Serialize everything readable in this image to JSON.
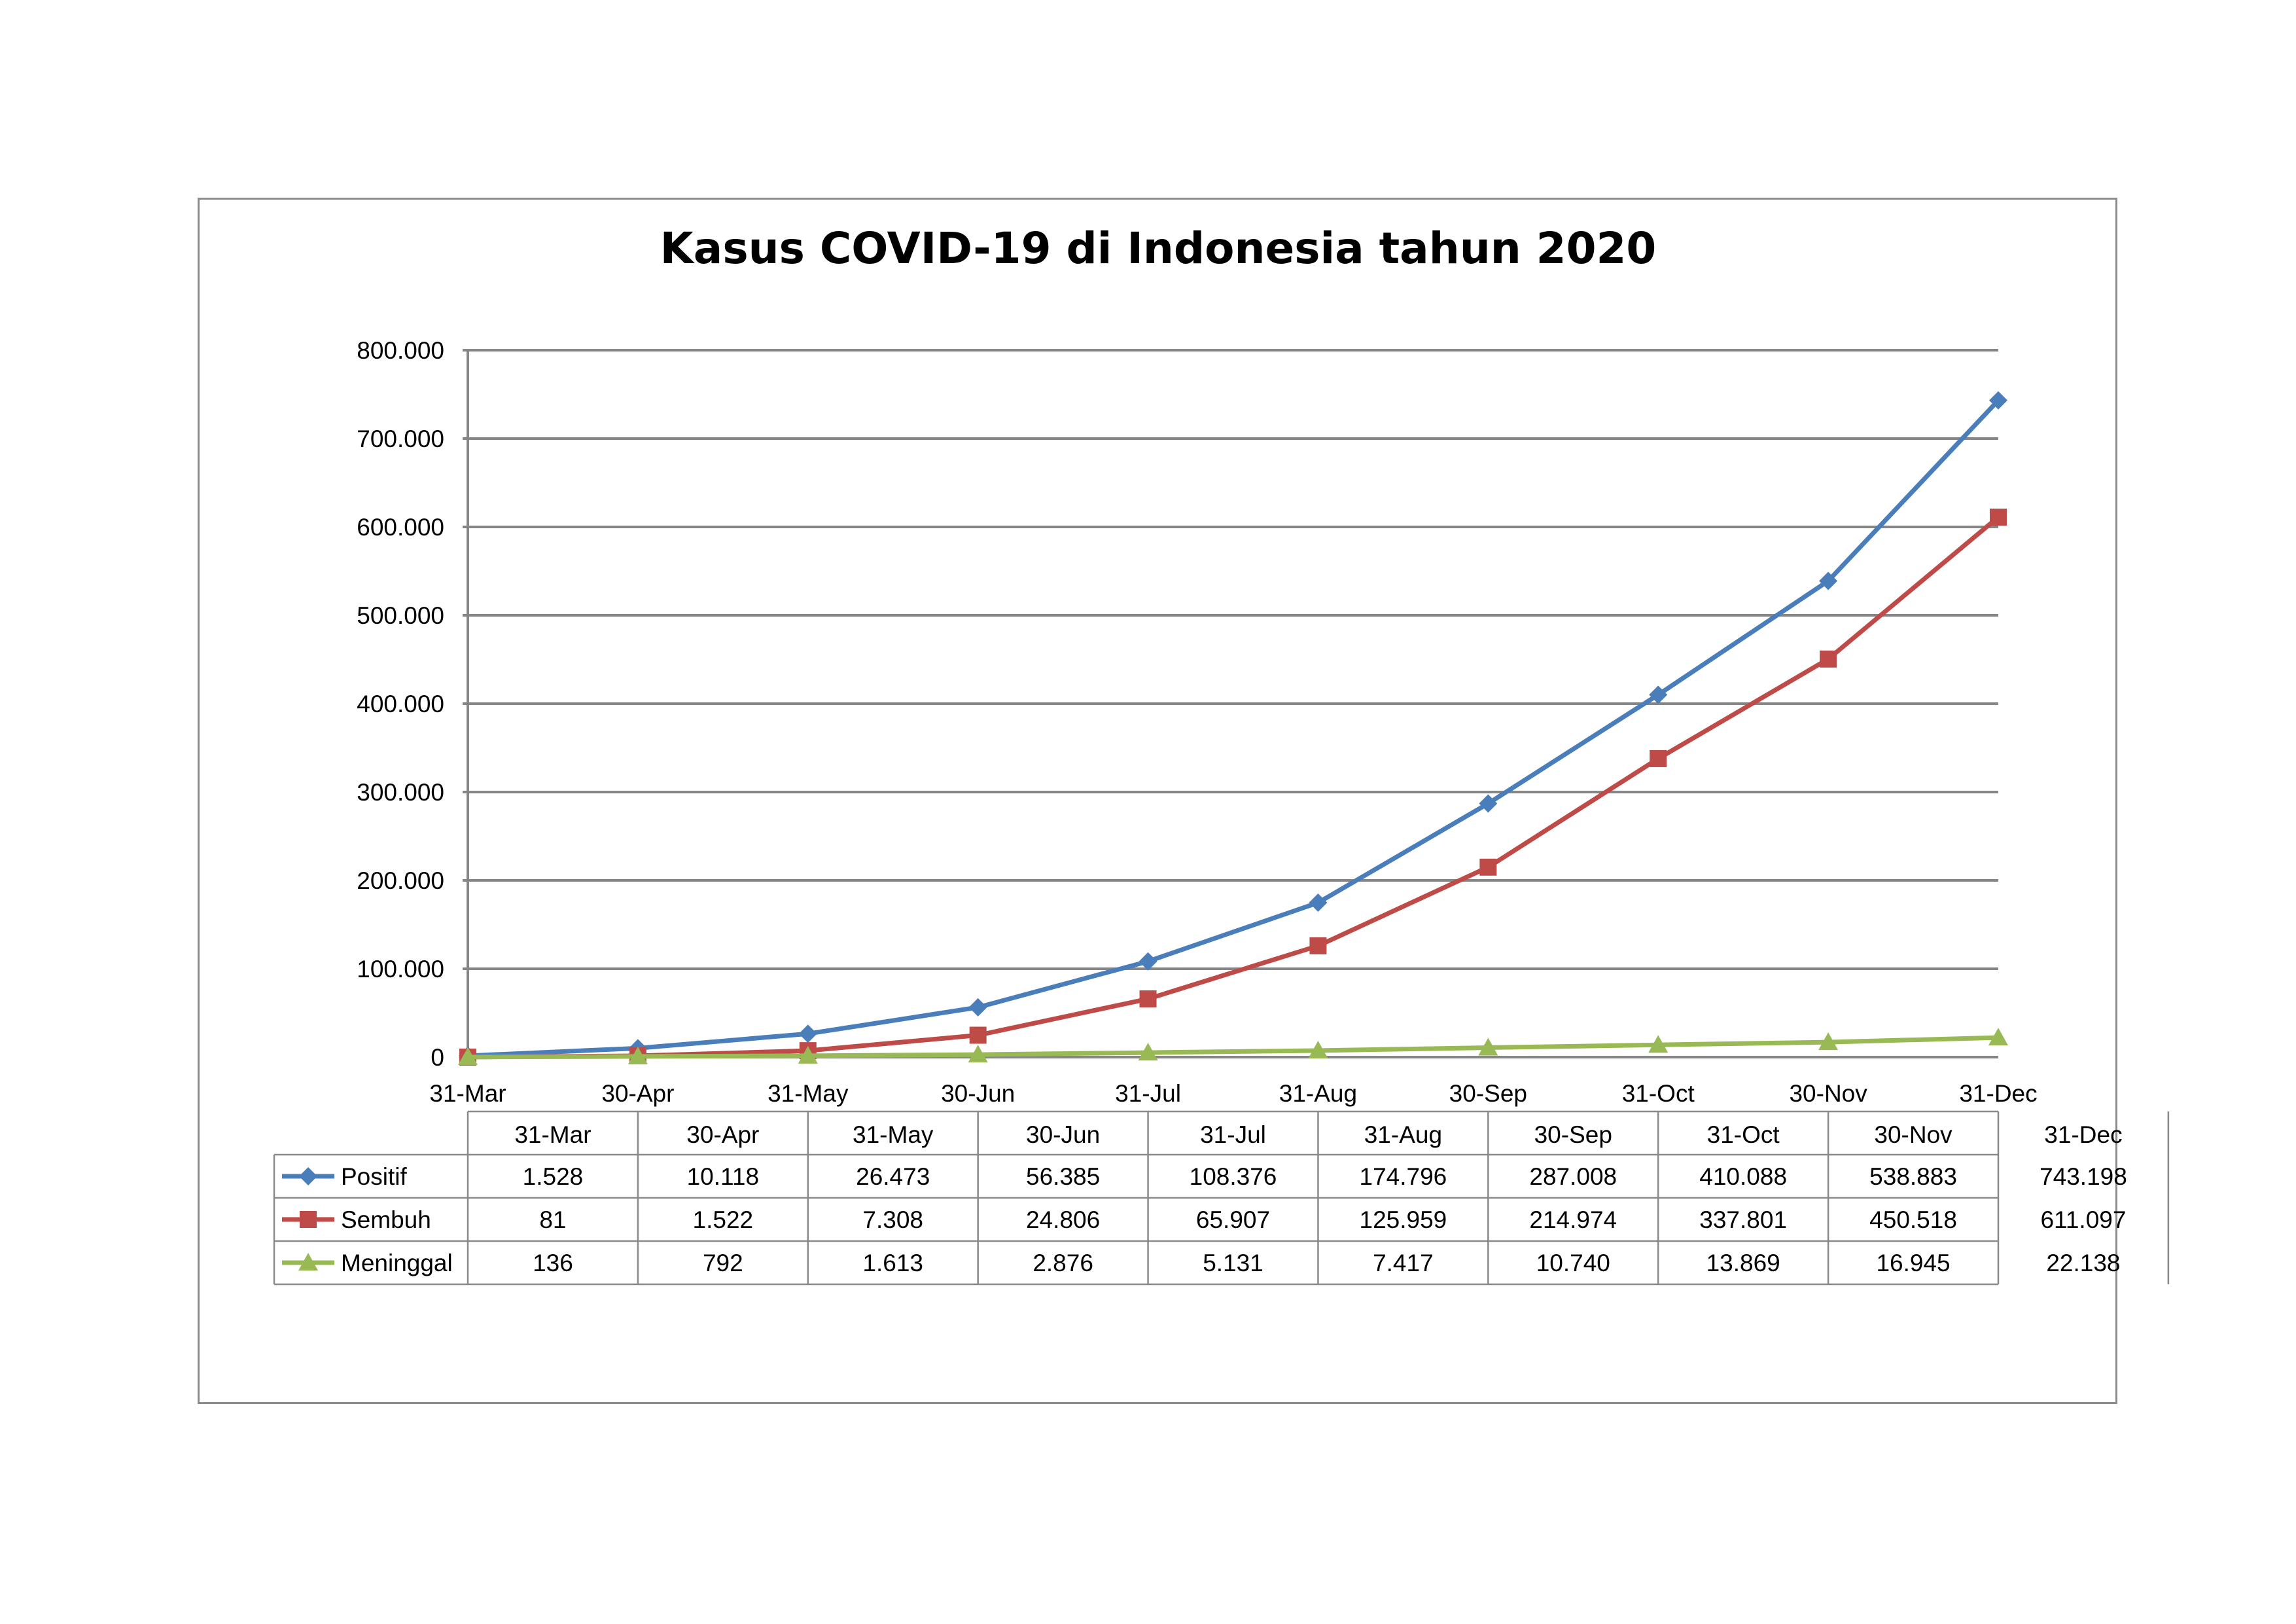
{
  "colors": {
    "positif": "#4a7ebb",
    "sembuh": "#be4b48",
    "meninggal": "#98b954",
    "grid": "#868686"
  },
  "chart_data": {
    "type": "line",
    "title": "Kasus COVID-19 di Indonesia tahun 2020",
    "xlabel": "",
    "ylabel": "",
    "ylim": [
      0,
      800000
    ],
    "ytick_labels": [
      "0",
      "100.000",
      "200.000",
      "300.000",
      "400.000",
      "500.000",
      "600.000",
      "700.000",
      "800.000"
    ],
    "ytick_values": [
      0,
      100000,
      200000,
      300000,
      400000,
      500000,
      600000,
      700000,
      800000
    ],
    "grid": true,
    "legend": "data-table",
    "categories": [
      "31-Mar",
      "30-Apr",
      "31-May",
      "30-Jun",
      "31-Jul",
      "31-Aug",
      "30-Sep",
      "31-Oct",
      "30-Nov",
      "31-Dec"
    ],
    "series": [
      {
        "name": "Positif",
        "marker": "diamond",
        "color": "#4a7ebb",
        "values": [
          1528,
          10118,
          26473,
          56385,
          108376,
          174796,
          287008,
          410088,
          538883,
          743198
        ],
        "labels": [
          "1.528",
          "10.118",
          "26.473",
          "56.385",
          "108.376",
          "174.796",
          "287.008",
          "410.088",
          "538.883",
          "743.198"
        ]
      },
      {
        "name": "Sembuh",
        "marker": "square",
        "color": "#be4b48",
        "values": [
          81,
          1522,
          7308,
          24806,
          65907,
          125959,
          214974,
          337801,
          450518,
          611097
        ],
        "labels": [
          "81",
          "1.522",
          "7.308",
          "24.806",
          "65.907",
          "125.959",
          "214.974",
          "337.801",
          "450.518",
          "611.097"
        ]
      },
      {
        "name": "Meninggal",
        "marker": "triangle",
        "color": "#98b954",
        "values": [
          136,
          792,
          1613,
          2876,
          5131,
          7417,
          10740,
          13869,
          16945,
          22138
        ],
        "labels": [
          "136",
          "792",
          "1.613",
          "2.876",
          "5.131",
          "7.417",
          "10.740",
          "13.869",
          "16.945",
          "22.138"
        ]
      }
    ]
  }
}
